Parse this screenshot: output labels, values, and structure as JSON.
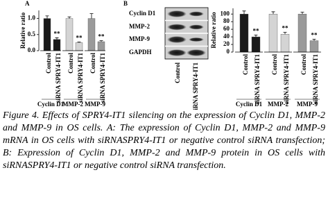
{
  "chart_data": [
    {
      "type": "bar",
      "panel_label": "A",
      "y_label": "Relative ratio",
      "categories": [
        "Control",
        "siRNA SPRY4-IT1"
      ],
      "series": [
        {
          "name": "Cyclin D1",
          "color": "#1a1a1a",
          "values": [
            1.0,
            0.35
          ],
          "errors": [
            0.08,
            0.05
          ],
          "annotation": "**"
        },
        {
          "name": "MMP-2",
          "color": "#d4d4d4",
          "values": [
            1.0,
            0.25
          ],
          "errors": [
            0.05,
            0.02
          ],
          "annotation": "**"
        },
        {
          "name": "MMP-9",
          "color": "#9a9a9a",
          "values": [
            1.0,
            0.28
          ],
          "errors": [
            0.15,
            0.03
          ],
          "annotation": "**"
        }
      ],
      "ylim": [
        0,
        1.25
      ],
      "yticks": [
        {
          "value": 0,
          "label": "0.0"
        },
        {
          "value": 0.5,
          "label": "0.5"
        },
        {
          "value": 1,
          "label": "1.0"
        }
      ]
    },
    {
      "type": "bar",
      "panel_label": "B",
      "y_label": "Relative ratio",
      "categories": [
        "Control",
        "siRNA SPRY4-IT1"
      ],
      "series": [
        {
          "name": "Cyclin D1",
          "color": "#1a1a1a",
          "values": [
            100,
            40
          ],
          "errors": [
            8,
            5
          ],
          "annotation": "**"
        },
        {
          "name": "MMP-2",
          "color": "#d4d4d4",
          "values": [
            100,
            47
          ],
          "errors": [
            6,
            5
          ],
          "annotation": "**"
        },
        {
          "name": "MMP-9",
          "color": "#9a9a9a",
          "values": [
            100,
            30
          ],
          "errors": [
            5,
            4
          ],
          "annotation": "**"
        }
      ],
      "ylim": [
        0,
        115
      ],
      "yticks": [
        0,
        20,
        40,
        60,
        80,
        100
      ]
    }
  ],
  "blot": {
    "rows": [
      "Cyclin D1",
      "MMP-2",
      "MMP-9",
      "GAPDH"
    ],
    "lanes": [
      "Control",
      "siRNA SPRY4-IT1"
    ]
  },
  "caption": {
    "label": "Figure 4.",
    "text": "Effects of SPRY4-IT1 silencing on the expression of Cyclin D1, MMP-2 and MMP-9 in OS cells. A: The expression of Cyclin D1, MMP-2 and MMP-9 mRNA in OS cells with siRNASPRY4-IT1 or negative control siRNA transfection; B: Expression of Cyclin D1, MMP-2 and MMP-9 protein in OS cells with siRNASPRY4-IT1 or negative control siRNA transfection."
  }
}
